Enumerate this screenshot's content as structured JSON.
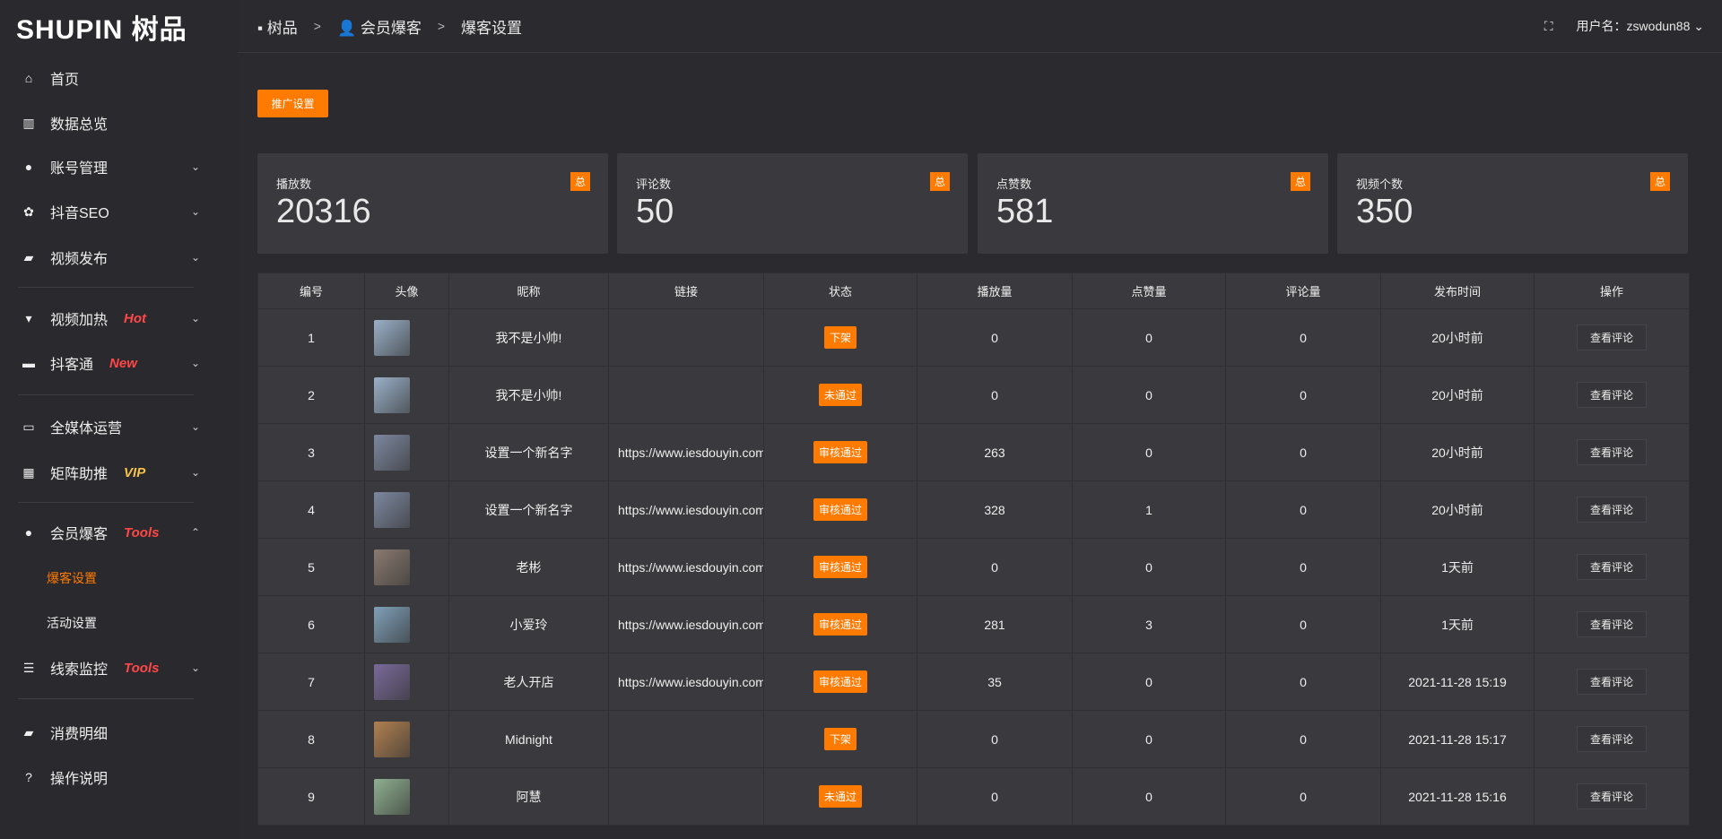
{
  "logo": "SHUPIN 树品",
  "breadcrumb": [
    "树品",
    "会员爆客",
    "爆客设置"
  ],
  "header": {
    "user_label": "用户名：zswodun88"
  },
  "sidebar": [
    {
      "label": "首页",
      "icon": "home-icon",
      "glyph": "⌂"
    },
    {
      "label": "数据总览",
      "icon": "bar-chart-icon",
      "glyph": "▥"
    },
    {
      "label": "账号管理",
      "icon": "user-icon",
      "glyph": "●",
      "chev": "⌄"
    },
    {
      "label": "抖音SEO",
      "icon": "gear-icon",
      "glyph": "✿",
      "chev": "⌄"
    },
    {
      "label": "视频发布",
      "icon": "camera-icon",
      "glyph": "▰",
      "chev": "⌄"
    },
    {
      "label": "视频加热",
      "icon": "flag-icon",
      "glyph": "▾",
      "chev": "⌄",
      "tag": "Hot",
      "tag_color": "#ff4747"
    },
    {
      "label": "抖客通",
      "icon": "comment-icon",
      "glyph": "▬",
      "chev": "⌄",
      "tag": "New",
      "tag_color": "#ff4747"
    },
    {
      "label": "全媒体运营",
      "icon": "monitor-icon",
      "glyph": "▭",
      "chev": "⌄"
    },
    {
      "label": "矩阵助推",
      "icon": "grid-icon",
      "glyph": "▦",
      "chev": "⌄",
      "tag": "VIP",
      "tag_color": "#f5c24a"
    },
    {
      "label": "会员爆客",
      "icon": "user-icon",
      "glyph": "●",
      "chev": "⌃",
      "tag": "Tools",
      "tag_color": "#ff4747"
    },
    {
      "label": "爆客设置",
      "sub": true,
      "active": true
    },
    {
      "label": "活动设置",
      "sub": true
    },
    {
      "label": "线索监控",
      "icon": "sliders-icon",
      "glyph": "☰",
      "chev": "⌄",
      "tag": "Tools",
      "tag_color": "#ff4747"
    },
    {
      "label": "消费明细",
      "icon": "wallet-icon",
      "glyph": "▰"
    },
    {
      "label": "操作说明",
      "icon": "help-icon",
      "glyph": "?"
    }
  ],
  "promo_button": "推广设置",
  "cards": [
    {
      "label": "播放数",
      "value": "20316",
      "badge": "总"
    },
    {
      "label": "评论数",
      "value": "50",
      "badge": "总"
    },
    {
      "label": "点赞数",
      "value": "581",
      "badge": "总"
    },
    {
      "label": "视频个数",
      "value": "350",
      "badge": "总"
    }
  ],
  "table": {
    "headers": [
      "编号",
      "头像",
      "昵称",
      "链接",
      "状态",
      "播放量",
      "点赞量",
      "评论量",
      "发布时间",
      "操作"
    ],
    "rows": [
      {
        "id": "1",
        "avatar": "#9ab0c8",
        "name": "我不是小帅!",
        "link": "",
        "status": "下架",
        "plays": "0",
        "likes": "0",
        "comments": "0",
        "time": "20小时前",
        "action": "查看评论"
      },
      {
        "id": "2",
        "avatar": "#9ab0c8",
        "name": "我不是小帅!",
        "link": "",
        "status": "未通过",
        "plays": "0",
        "likes": "0",
        "comments": "0",
        "time": "20小时前",
        "action": "查看评论"
      },
      {
        "id": "3",
        "avatar": "#7d88a0",
        "name": "设置一个新名字",
        "link": "https://www.iesdouyin.com",
        "status": "审核通过",
        "plays": "263",
        "likes": "0",
        "comments": "0",
        "time": "20小时前",
        "action": "查看评论"
      },
      {
        "id": "4",
        "avatar": "#7d88a0",
        "name": "设置一个新名字",
        "link": "https://www.iesdouyin.com",
        "status": "审核通过",
        "plays": "328",
        "likes": "1",
        "comments": "0",
        "time": "20小时前",
        "action": "查看评论"
      },
      {
        "id": "5",
        "avatar": "#8a7a70",
        "name": "老彬",
        "link": "https://www.iesdouyin.com",
        "status": "审核通过",
        "plays": "0",
        "likes": "0",
        "comments": "0",
        "time": "1天前",
        "action": "查看评论"
      },
      {
        "id": "6",
        "avatar": "#7fa0b8",
        "name": "小爱玲",
        "link": "https://www.iesdouyin.com",
        "status": "审核通过",
        "plays": "281",
        "likes": "3",
        "comments": "0",
        "time": "1天前",
        "action": "查看评论"
      },
      {
        "id": "7",
        "avatar": "#7a6a9a",
        "name": "老人开店",
        "link": "https://www.iesdouyin.com",
        "status": "审核通过",
        "plays": "35",
        "likes": "0",
        "comments": "0",
        "time": "2021-11-28 15:19",
        "action": "查看评论"
      },
      {
        "id": "8",
        "avatar": "#b08050",
        "name": "Midnight",
        "link": "",
        "status": "下架",
        "plays": "0",
        "likes": "0",
        "comments": "0",
        "time": "2021-11-28 15:17",
        "action": "查看评论"
      },
      {
        "id": "9",
        "avatar": "#8fb090",
        "name": "阿慧",
        "link": "",
        "status": "未通过",
        "plays": "0",
        "likes": "0",
        "comments": "0",
        "time": "2021-11-28 15:16",
        "action": "查看评论"
      }
    ]
  },
  "colors": {
    "accent": "#ff7a00",
    "link": "#2f8cff",
    "background": "#2b2b2f",
    "card": "#3a3a3e"
  }
}
